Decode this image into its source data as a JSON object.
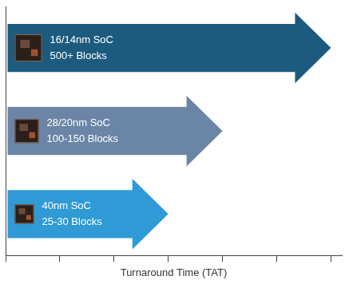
{
  "chart_data": {
    "type": "bar",
    "orientation": "horizontal",
    "x_label": "Turnaround Time (TAT)",
    "categories": [
      [
        "16/14nm SoC",
        "500+ Blocks"
      ],
      [
        "28/20nm SoC",
        "100-150 Blocks"
      ],
      [
        "40nm SoC",
        "25-30 Blocks"
      ]
    ],
    "values": [
      6,
      4,
      3
    ],
    "colors": [
      "#1d5b7e",
      "#6b85a6",
      "#2f9ad6"
    ],
    "xlim": [
      0,
      6.2
    ],
    "xticks": [
      0,
      1,
      2,
      3,
      4,
      5,
      6
    ],
    "tick_labels": false,
    "grid": false
  }
}
